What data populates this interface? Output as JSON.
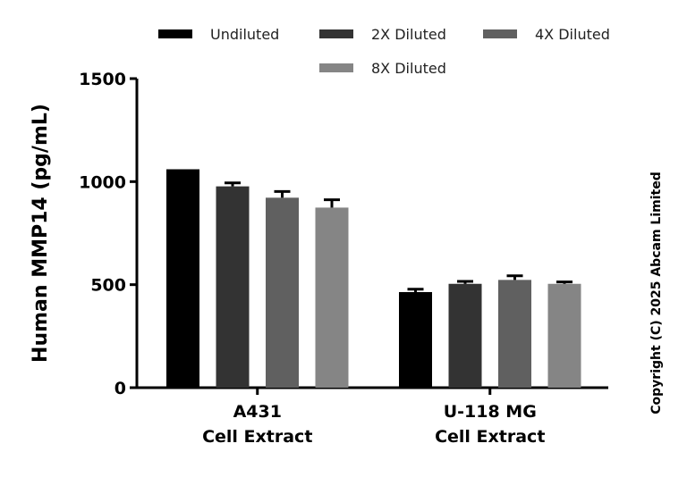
{
  "chart_data": {
    "type": "bar",
    "ylabel": "Human MMP14 (pg/mL)",
    "ylim": [
      0,
      1500
    ],
    "yticks": [
      "0",
      "500",
      "1000",
      "1500"
    ],
    "categories": [
      [
        "A431",
        "Cell Extract"
      ],
      [
        "U-118 MG",
        "Cell Extract"
      ]
    ],
    "series": [
      {
        "name": "Undiluted",
        "color": "#000000",
        "values": [
          1060,
          464
        ],
        "errors": [
          0,
          14
        ]
      },
      {
        "name": "2X Diluted",
        "color": "#333333",
        "values": [
          977,
          504
        ],
        "errors": [
          17,
          12
        ]
      },
      {
        "name": "4X Diluted",
        "color": "#606060",
        "values": [
          922,
          523
        ],
        "errors": [
          30,
          20
        ]
      },
      {
        "name": "8X Diluted",
        "color": "#858585",
        "values": [
          874,
          504
        ],
        "errors": [
          38,
          9
        ]
      }
    ],
    "legend": "top",
    "grid": false
  },
  "copyright": "Copyright (C) 2025 Abcam Limited"
}
